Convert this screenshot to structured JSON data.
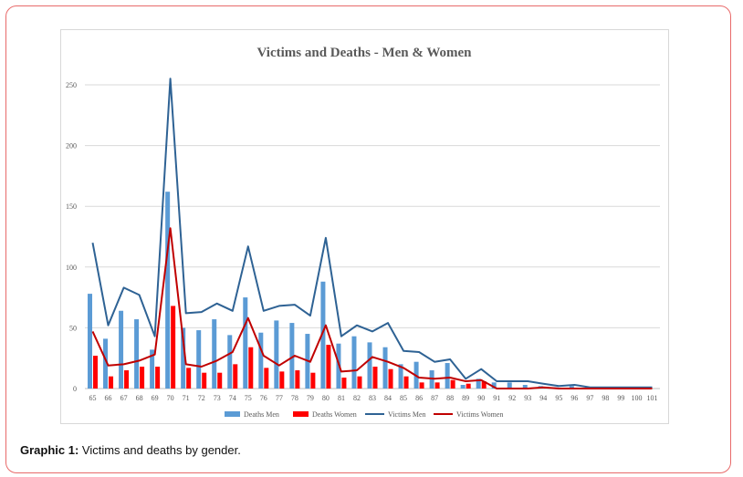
{
  "caption": {
    "label": "Graphic 1:",
    "text": " Victims and deaths by gender."
  },
  "colors": {
    "deaths_men": "#5b9bd5",
    "deaths_women": "#ff0000",
    "victims_men": "#2e6294",
    "victims_women": "#c00000",
    "frame": "#e86a6a"
  },
  "chart_data": {
    "type": "bar",
    "title": "Victims and Deaths - Men & Women",
    "xlabel": "",
    "ylabel": "",
    "ylim": [
      0,
      250
    ],
    "yticks": [
      0,
      50,
      100,
      150,
      200,
      250
    ],
    "grid": true,
    "legend_position": "bottom",
    "categories": [
      "65",
      "66",
      "67",
      "68",
      "69",
      "70",
      "71",
      "72",
      "73",
      "74",
      "75",
      "76",
      "77",
      "78",
      "79",
      "80",
      "81",
      "82",
      "83",
      "84",
      "85",
      "86",
      "87",
      "88",
      "89",
      "90",
      "91",
      "92",
      "93",
      "94",
      "95",
      "96",
      "97",
      "98",
      "99",
      "100",
      "101"
    ],
    "series": [
      {
        "name": "Deaths Men",
        "kind": "bar",
        "values": [
          78,
          41,
          64,
          57,
          32,
          162,
          50,
          48,
          57,
          44,
          75,
          46,
          56,
          54,
          45,
          88,
          37,
          43,
          38,
          34,
          20,
          22,
          15,
          21,
          3,
          8,
          5,
          5,
          3,
          2,
          1,
          2,
          1,
          0,
          0,
          0,
          1
        ]
      },
      {
        "name": "Deaths Women",
        "kind": "bar",
        "values": [
          27,
          10,
          15,
          18,
          18,
          68,
          17,
          13,
          13,
          20,
          34,
          17,
          14,
          15,
          13,
          36,
          9,
          10,
          18,
          16,
          10,
          5,
          5,
          7,
          4,
          6,
          0,
          0,
          0,
          1,
          0,
          0,
          0,
          0,
          0,
          0,
          0
        ]
      },
      {
        "name": "Victims Men",
        "kind": "line",
        "values": [
          120,
          52,
          83,
          77,
          43,
          255,
          62,
          63,
          70,
          64,
          117,
          64,
          68,
          69,
          60,
          124,
          43,
          52,
          47,
          54,
          31,
          30,
          22,
          24,
          8,
          16,
          6,
          6,
          6,
          4,
          2,
          3,
          1,
          1,
          1,
          1,
          1
        ]
      },
      {
        "name": "Victims Women",
        "kind": "line",
        "values": [
          47,
          19,
          20,
          23,
          28,
          132,
          20,
          18,
          23,
          30,
          58,
          27,
          19,
          27,
          22,
          52,
          14,
          15,
          26,
          22,
          17,
          9,
          8,
          9,
          6,
          7,
          0,
          0,
          0,
          1,
          0,
          0,
          0,
          0,
          0,
          0,
          0
        ]
      }
    ]
  }
}
